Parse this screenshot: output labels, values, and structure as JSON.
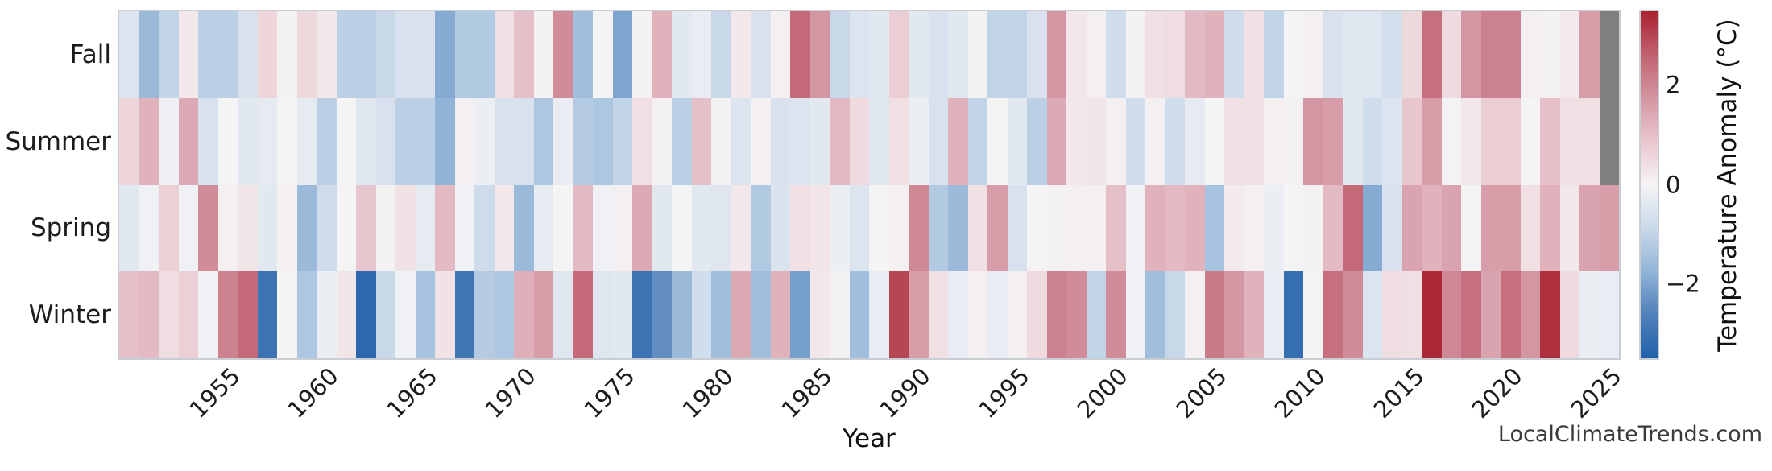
{
  "watermark": "LocalClimateTrends.com",
  "chart_data": {
    "type": "heatmap",
    "title": "",
    "xlabel": "Year",
    "ylabel": "",
    "rows_top_to_bottom": [
      "Fall",
      "Summer",
      "Spring",
      "Winter"
    ],
    "year_start": 1950,
    "year_end": 2025,
    "x_tick_years": [
      1955,
      1960,
      1965,
      1970,
      1975,
      1980,
      1985,
      1990,
      1995,
      2000,
      2005,
      2010,
      2015,
      2020,
      2025
    ],
    "colorbar": {
      "label": "Temperature Anomaly (°C)",
      "tick_labels": [
        "2",
        "0",
        "−2"
      ],
      "tick_values": [
        2,
        0,
        -2
      ],
      "vmin": -3.5,
      "vmax": 3.5
    },
    "colors": {
      "positive_end": "#aa2130",
      "center": "#f5f4f5",
      "negative_end": "#2061aa",
      "missing": "#7f7f7f",
      "frame": "#c9cdd4"
    },
    "series": [
      {
        "name": "Fall",
        "values": [
          -0.5,
          -1.6,
          -1.0,
          0.25,
          -1.1,
          -1.1,
          -0.6,
          0.6,
          0.05,
          0.55,
          0.25,
          -1.1,
          -1.1,
          -0.9,
          -0.6,
          -0.6,
          -1.9,
          -1.25,
          -1.25,
          0.4,
          1.0,
          0.05,
          1.9,
          -1.5,
          0.0,
          -2.0,
          0.05,
          1.25,
          -0.4,
          -0.25,
          -0.9,
          0.25,
          -0.6,
          0.1,
          2.5,
          1.75,
          -0.9,
          -0.5,
          -0.4,
          0.75,
          -0.4,
          -0.6,
          -0.4,
          0.05,
          -1.0,
          -1.0,
          -0.6,
          1.75,
          0.25,
          0.1,
          -0.75,
          0.05,
          0.4,
          0.45,
          1.1,
          1.25,
          -0.75,
          0.4,
          -1.0,
          0.0,
          0.1,
          -0.6,
          -0.45,
          -0.45,
          -0.7,
          0.55,
          2.4,
          0.5,
          1.75,
          2.1,
          2.1,
          0.1,
          0.05,
          0.2,
          1.6,
          null
        ]
      },
      {
        "name": "Summer",
        "values": [
          0.6,
          1.25,
          -0.15,
          1.4,
          -0.6,
          0.0,
          -0.4,
          -0.3,
          0.0,
          -0.3,
          -1.1,
          0.0,
          -0.45,
          -0.6,
          -1.1,
          -1.1,
          -1.75,
          0.1,
          -0.2,
          -0.6,
          -0.6,
          -1.3,
          -0.25,
          -1.2,
          -1.3,
          -1.0,
          0.4,
          0.05,
          -1.1,
          1.0,
          0.05,
          -0.5,
          0.1,
          -0.6,
          -0.5,
          -0.4,
          1.1,
          0.5,
          -0.45,
          0.4,
          -0.2,
          -0.6,
          1.25,
          -1.0,
          0.0,
          -0.4,
          -1.1,
          1.4,
          0.25,
          0.3,
          0.1,
          -0.75,
          0.1,
          -0.75,
          -0.3,
          0.0,
          0.4,
          0.4,
          0.1,
          0.05,
          1.75,
          1.6,
          -0.4,
          -0.75,
          -0.5,
          0.9,
          1.6,
          -0.05,
          0.25,
          0.75,
          0.75,
          0.0,
          1.0,
          0.4,
          0.4,
          null
        ]
      },
      {
        "name": "Spring",
        "values": [
          -0.4,
          -0.1,
          0.7,
          -0.1,
          1.9,
          0.1,
          0.3,
          -0.4,
          0.1,
          -1.6,
          -0.8,
          0.0,
          0.9,
          0.05,
          0.35,
          -0.3,
          1.1,
          -0.1,
          -0.8,
          0.25,
          -1.6,
          -0.3,
          0.0,
          1.1,
          -0.1,
          0.1,
          1.4,
          -0.4,
          0.0,
          -0.4,
          -0.45,
          0.25,
          -1.25,
          -0.55,
          0.4,
          0.3,
          -0.2,
          -0.5,
          0.0,
          0.1,
          2.0,
          -1.25,
          -1.6,
          0.4,
          1.6,
          -0.6,
          0.0,
          0.05,
          0.1,
          0.1,
          1.0,
          -0.1,
          1.25,
          1.1,
          1.25,
          -1.4,
          0.2,
          0.1,
          -0.2,
          0.0,
          0.05,
          1.1,
          2.5,
          -1.9,
          -0.6,
          1.5,
          1.25,
          1.5,
          0.0,
          1.6,
          1.6,
          0.4,
          1.25,
          0.25,
          1.5,
          1.6
        ]
      },
      {
        "name": "Winter",
        "values": [
          1.0,
          1.1,
          0.45,
          0.7,
          -0.1,
          2.1,
          2.5,
          -3.0,
          0.0,
          -1.3,
          -0.2,
          0.3,
          -3.3,
          -0.9,
          -0.1,
          -1.4,
          0.35,
          -2.9,
          -1.2,
          -1.3,
          1.3,
          1.6,
          -0.45,
          2.5,
          -0.45,
          -0.4,
          -3.0,
          -2.4,
          -1.6,
          -0.75,
          -1.5,
          1.4,
          -1.5,
          1.25,
          -2.1,
          0.25,
          0.05,
          -1.5,
          -0.25,
          3.0,
          1.6,
          0.4,
          -0.25,
          0.1,
          -0.25,
          0.1,
          0.5,
          2.1,
          1.9,
          -1.0,
          1.9,
          -0.1,
          -1.5,
          -0.9,
          0.1,
          2.2,
          1.75,
          1.25,
          -0.25,
          -3.1,
          0.0,
          2.4,
          1.9,
          -0.5,
          0.45,
          0.4,
          3.4,
          2.0,
          2.4,
          1.5,
          2.4,
          1.75,
          3.3,
          0.5,
          -0.2,
          -0.25
        ]
      }
    ]
  }
}
